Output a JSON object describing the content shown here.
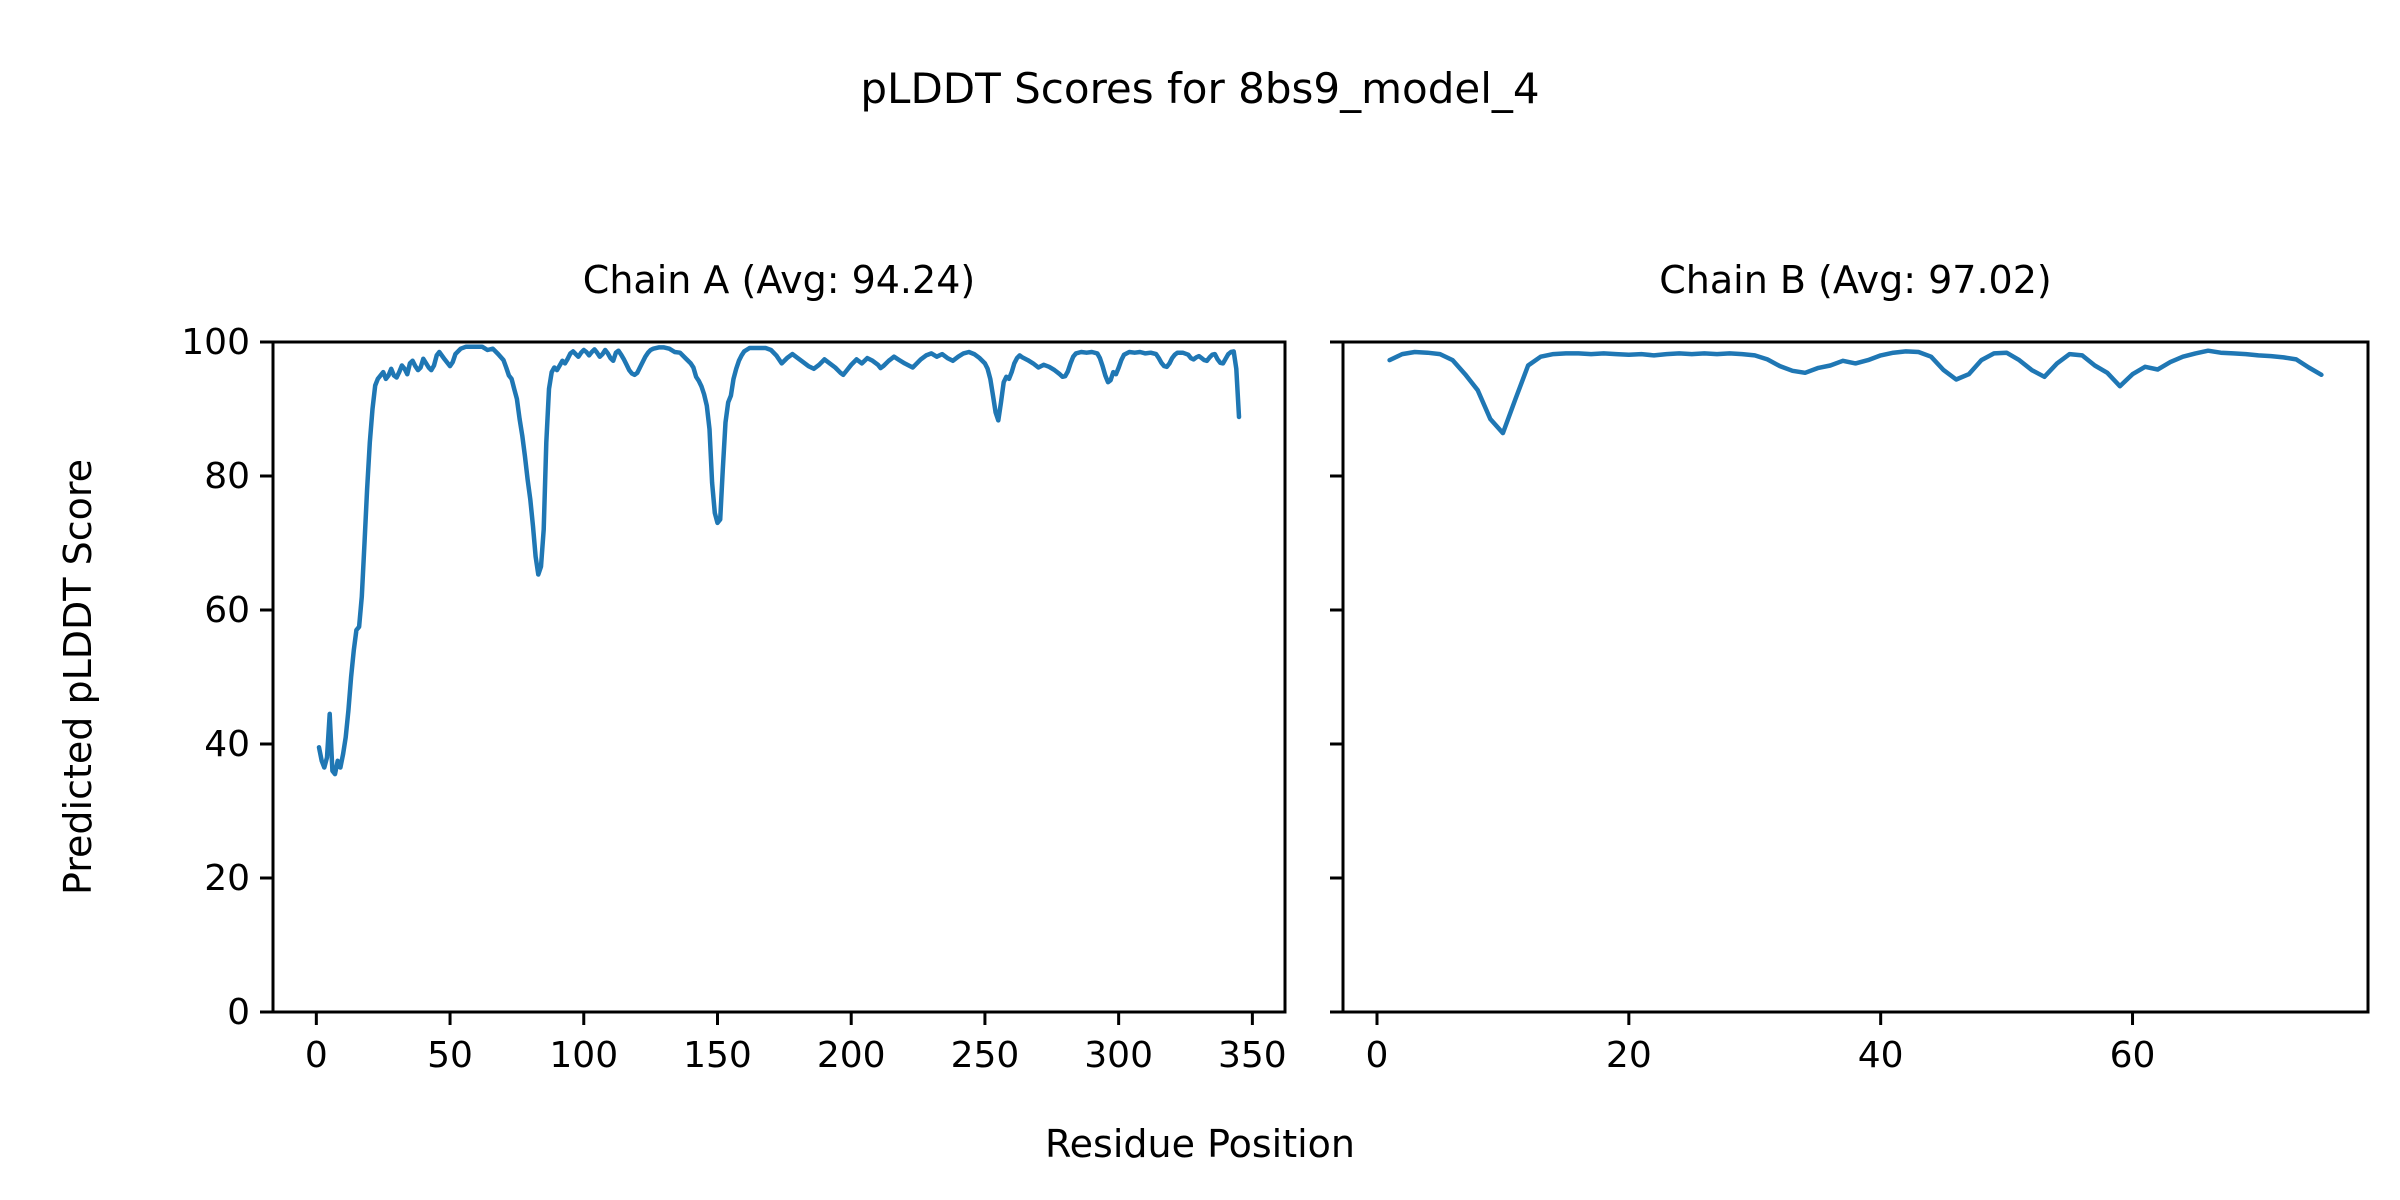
{
  "figure": {
    "title": "pLDDT Scores for 8bs9_model_4",
    "xlabel": "Residue Position",
    "ylabel": "Predicted pLDDT Score",
    "background": "#ffffff",
    "text_color": "#000000",
    "line_color": "#1f77b4"
  },
  "chart_data": [
    {
      "type": "line",
      "title": "Chain A (Avg: 94.24)",
      "chain": "A",
      "average_plddt": 94.24,
      "line_color": "#1f77b4",
      "x_ticks": [
        0,
        50,
        100,
        150,
        200,
        250,
        300,
        350
      ],
      "y_ticks": [
        0,
        20,
        40,
        60,
        80,
        100
      ],
      "show_y_tick_labels": true,
      "ylim": [
        0,
        100
      ],
      "grid": false,
      "points": [
        [
          1,
          39.5
        ],
        [
          2,
          37.5
        ],
        [
          3,
          36.5
        ],
        [
          4,
          38
        ],
        [
          5,
          44.5
        ],
        [
          6,
          36
        ],
        [
          7,
          35.5
        ],
        [
          8,
          37.5
        ],
        [
          9,
          36.5
        ],
        [
          10,
          38.5
        ],
        [
          11,
          41
        ],
        [
          12,
          45
        ],
        [
          13,
          50
        ],
        [
          14,
          54
        ],
        [
          15,
          57
        ],
        [
          16,
          57.5
        ],
        [
          17,
          62
        ],
        [
          18,
          70
        ],
        [
          19,
          78
        ],
        [
          20,
          85
        ],
        [
          21,
          90
        ],
        [
          22,
          93.5
        ],
        [
          23,
          94.5
        ],
        [
          24,
          95
        ],
        [
          25,
          95.5
        ],
        [
          26,
          94.5
        ],
        [
          27,
          95
        ],
        [
          28,
          96
        ],
        [
          29,
          95
        ],
        [
          30,
          94.7
        ],
        [
          31,
          95.5
        ],
        [
          32,
          96.5
        ],
        [
          33,
          96
        ],
        [
          34,
          95.2
        ],
        [
          35,
          96.8
        ],
        [
          36,
          97.2
        ],
        [
          37,
          96.4
        ],
        [
          38,
          95.8
        ],
        [
          39,
          96.2
        ],
        [
          40,
          97.5
        ],
        [
          42,
          96.2
        ],
        [
          43,
          95.8
        ],
        [
          44,
          96.5
        ],
        [
          45,
          98
        ],
        [
          46,
          98.5
        ],
        [
          48,
          97.4
        ],
        [
          50,
          96.4
        ],
        [
          51,
          97
        ],
        [
          52,
          98.2
        ],
        [
          54,
          99
        ],
        [
          56,
          99.3
        ],
        [
          58,
          99.3
        ],
        [
          60,
          99.3
        ],
        [
          62,
          99.3
        ],
        [
          64,
          98.8
        ],
        [
          66,
          99
        ],
        [
          68,
          98.2
        ],
        [
          70,
          97.3
        ],
        [
          71,
          96.2
        ],
        [
          72,
          95
        ],
        [
          73,
          94.5
        ],
        [
          74,
          93
        ],
        [
          75,
          91.5
        ],
        [
          76,
          88.5
        ],
        [
          77,
          86
        ],
        [
          78,
          83
        ],
        [
          79,
          79.5
        ],
        [
          80,
          76.5
        ],
        [
          81,
          72.5
        ],
        [
          82,
          68
        ],
        [
          83,
          65.3
        ],
        [
          84,
          66.5
        ],
        [
          85,
          72
        ],
        [
          86,
          85
        ],
        [
          87,
          93
        ],
        [
          88,
          95.5
        ],
        [
          89,
          96.2
        ],
        [
          90,
          95.8
        ],
        [
          91,
          96.5
        ],
        [
          92,
          97.2
        ],
        [
          93,
          96.8
        ],
        [
          94,
          97.5
        ],
        [
          95,
          98.3
        ],
        [
          96,
          98.6
        ],
        [
          97,
          98.2
        ],
        [
          98,
          97.8
        ],
        [
          99,
          98.4
        ],
        [
          100,
          98.8
        ],
        [
          101,
          98.5
        ],
        [
          102,
          98
        ],
        [
          103,
          98.5
        ],
        [
          104,
          98.9
        ],
        [
          105,
          98.4
        ],
        [
          106,
          97.8
        ],
        [
          107,
          98.2
        ],
        [
          108,
          98.8
        ],
        [
          109,
          98.3
        ],
        [
          110,
          97.6
        ],
        [
          111,
          97.2
        ],
        [
          112,
          98.4
        ],
        [
          113,
          98.7
        ],
        [
          114,
          98.1
        ],
        [
          115,
          97.4
        ],
        [
          116,
          96.6
        ],
        [
          117,
          95.8
        ],
        [
          118,
          95.3
        ],
        [
          119,
          95.1
        ],
        [
          120,
          95.4
        ],
        [
          121,
          96.2
        ],
        [
          122,
          97
        ],
        [
          123,
          97.8
        ],
        [
          124,
          98.4
        ],
        [
          125,
          98.8
        ],
        [
          126,
          99
        ],
        [
          128,
          99.2
        ],
        [
          130,
          99.2
        ],
        [
          132,
          99
        ],
        [
          134,
          98.5
        ],
        [
          136,
          98.4
        ],
        [
          138,
          97.6
        ],
        [
          140,
          96.8
        ],
        [
          141,
          96.2
        ],
        [
          142,
          94.8
        ],
        [
          143,
          94.2
        ],
        [
          144,
          93.4
        ],
        [
          145,
          92.2
        ],
        [
          146,
          90.5
        ],
        [
          147,
          87
        ],
        [
          148,
          79
        ],
        [
          149,
          74.5
        ],
        [
          150,
          73
        ],
        [
          151,
          73.5
        ],
        [
          152,
          81
        ],
        [
          153,
          88
        ],
        [
          154,
          91
        ],
        [
          155,
          92
        ],
        [
          156,
          94.5
        ],
        [
          157,
          96
        ],
        [
          158,
          97.2
        ],
        [
          159,
          98
        ],
        [
          160,
          98.6
        ],
        [
          162,
          99.1
        ],
        [
          164,
          99.1
        ],
        [
          166,
          99.1
        ],
        [
          168,
          99.1
        ],
        [
          170,
          98.8
        ],
        [
          172,
          98
        ],
        [
          173,
          97.4
        ],
        [
          174,
          96.8
        ],
        [
          176,
          97.6
        ],
        [
          178,
          98.2
        ],
        [
          180,
          97.6
        ],
        [
          182,
          97
        ],
        [
          184,
          96.4
        ],
        [
          186,
          96
        ],
        [
          188,
          96.6
        ],
        [
          190,
          97.4
        ],
        [
          192,
          96.8
        ],
        [
          194,
          96.2
        ],
        [
          196,
          95.4
        ],
        [
          197,
          95.1
        ],
        [
          198,
          95.6
        ],
        [
          200,
          96.6
        ],
        [
          202,
          97.4
        ],
        [
          204,
          96.8
        ],
        [
          206,
          97.6
        ],
        [
          208,
          97.2
        ],
        [
          210,
          96.6
        ],
        [
          211,
          96.1
        ],
        [
          212,
          96.4
        ],
        [
          214,
          97.2
        ],
        [
          216,
          97.8
        ],
        [
          218,
          97.3
        ],
        [
          220,
          96.8
        ],
        [
          222,
          96.4
        ],
        [
          223,
          96.2
        ],
        [
          224,
          96.6
        ],
        [
          226,
          97.4
        ],
        [
          228,
          98
        ],
        [
          230,
          98.3
        ],
        [
          232,
          97.8
        ],
        [
          234,
          98.2
        ],
        [
          236,
          97.6
        ],
        [
          238,
          97.2
        ],
        [
          240,
          97.8
        ],
        [
          242,
          98.3
        ],
        [
          244,
          98.5
        ],
        [
          246,
          98.2
        ],
        [
          248,
          97.6
        ],
        [
          250,
          96.8
        ],
        [
          251,
          96
        ],
        [
          252,
          94.5
        ],
        [
          253,
          92
        ],
        [
          254,
          89.5
        ],
        [
          255,
          88.3
        ],
        [
          256,
          91
        ],
        [
          257,
          94
        ],
        [
          258,
          94.8
        ],
        [
          259,
          94.5
        ],
        [
          260,
          95.5
        ],
        [
          261,
          96.8
        ],
        [
          262,
          97.6
        ],
        [
          263,
          98
        ],
        [
          264,
          97.7
        ],
        [
          266,
          97.3
        ],
        [
          268,
          96.8
        ],
        [
          270,
          96.2
        ],
        [
          272,
          96.6
        ],
        [
          274,
          96.3
        ],
        [
          276,
          95.8
        ],
        [
          278,
          95.2
        ],
        [
          279,
          94.8
        ],
        [
          280,
          94.9
        ],
        [
          281,
          95.6
        ],
        [
          282,
          96.8
        ],
        [
          283,
          97.8
        ],
        [
          284,
          98.3
        ],
        [
          286,
          98.5
        ],
        [
          288,
          98.4
        ],
        [
          290,
          98.5
        ],
        [
          292,
          98.3
        ],
        [
          293,
          97.6
        ],
        [
          294,
          96.4
        ],
        [
          295,
          95
        ],
        [
          296,
          94
        ],
        [
          297,
          94.3
        ],
        [
          298,
          95.5
        ],
        [
          299,
          95.2
        ],
        [
          300,
          96.2
        ],
        [
          301,
          97.3
        ],
        [
          302,
          98.1
        ],
        [
          304,
          98.5
        ],
        [
          306,
          98.4
        ],
        [
          308,
          98.5
        ],
        [
          310,
          98.3
        ],
        [
          312,
          98.4
        ],
        [
          314,
          98.2
        ],
        [
          315,
          97.6
        ],
        [
          316,
          96.9
        ],
        [
          317,
          96.4
        ],
        [
          318,
          96.3
        ],
        [
          319,
          96.8
        ],
        [
          320,
          97.6
        ],
        [
          321,
          98.1
        ],
        [
          322,
          98.4
        ],
        [
          324,
          98.4
        ],
        [
          326,
          98.1
        ],
        [
          327,
          97.6
        ],
        [
          328,
          97.4
        ],
        [
          329,
          97.7
        ],
        [
          330,
          97.9
        ],
        [
          331,
          97.6
        ],
        [
          332,
          97.3
        ],
        [
          333,
          97.2
        ],
        [
          334,
          97.7
        ],
        [
          335,
          98.1
        ],
        [
          336,
          98.2
        ],
        [
          337,
          97.4
        ],
        [
          338,
          96.9
        ],
        [
          339,
          96.8
        ],
        [
          340,
          97.5
        ],
        [
          341,
          98.2
        ],
        [
          342,
          98.5
        ],
        [
          343,
          98.6
        ],
        [
          344,
          96
        ],
        [
          345,
          88.8
        ]
      ]
    },
    {
      "type": "line",
      "title": "Chain B (Avg: 97.02)",
      "chain": "B",
      "average_plddt": 97.02,
      "line_color": "#1f77b4",
      "x_ticks": [
        0,
        20,
        40,
        60
      ],
      "y_ticks": [
        0,
        20,
        40,
        60,
        80,
        100
      ],
      "show_y_tick_labels": false,
      "ylim": [
        0,
        100
      ],
      "grid": false,
      "points": [
        [
          1,
          97.3
        ],
        [
          2,
          98.2
        ],
        [
          3,
          98.5
        ],
        [
          4,
          98.4
        ],
        [
          5,
          98.2
        ],
        [
          6,
          97.3
        ],
        [
          7,
          95.2
        ],
        [
          8,
          92.8
        ],
        [
          9,
          88.5
        ],
        [
          10,
          86.4
        ],
        [
          11,
          91.5
        ],
        [
          12,
          96.5
        ],
        [
          13,
          97.8
        ],
        [
          14,
          98.2
        ],
        [
          15,
          98.3
        ],
        [
          16,
          98.3
        ],
        [
          17,
          98.2
        ],
        [
          18,
          98.3
        ],
        [
          19,
          98.2
        ],
        [
          20,
          98.1
        ],
        [
          21,
          98.2
        ],
        [
          22,
          98
        ],
        [
          23,
          98.2
        ],
        [
          24,
          98.3
        ],
        [
          25,
          98.2
        ],
        [
          26,
          98.3
        ],
        [
          27,
          98.2
        ],
        [
          28,
          98.3
        ],
        [
          29,
          98.2
        ],
        [
          30,
          98
        ],
        [
          31,
          97.4
        ],
        [
          32,
          96.4
        ],
        [
          33,
          95.7
        ],
        [
          34,
          95.4
        ],
        [
          35,
          96.1
        ],
        [
          36,
          96.5
        ],
        [
          37,
          97.2
        ],
        [
          38,
          96.8
        ],
        [
          39,
          97.3
        ],
        [
          40,
          98
        ],
        [
          41,
          98.4
        ],
        [
          42,
          98.6
        ],
        [
          43,
          98.5
        ],
        [
          44,
          97.8
        ],
        [
          45,
          95.8
        ],
        [
          46,
          94.4
        ],
        [
          47,
          95.2
        ],
        [
          48,
          97.3
        ],
        [
          49,
          98.3
        ],
        [
          50,
          98.4
        ],
        [
          51,
          97.3
        ],
        [
          52,
          95.8
        ],
        [
          53,
          94.8
        ],
        [
          54,
          96.8
        ],
        [
          55,
          98.2
        ],
        [
          56,
          98
        ],
        [
          57,
          96.5
        ],
        [
          58,
          95.4
        ],
        [
          59,
          93.4
        ],
        [
          60,
          95.2
        ],
        [
          61,
          96.3
        ],
        [
          62,
          95.9
        ],
        [
          63,
          97
        ],
        [
          64,
          97.8
        ],
        [
          65,
          98.3
        ],
        [
          66,
          98.7
        ],
        [
          67,
          98.4
        ],
        [
          68,
          98.3
        ],
        [
          69,
          98.2
        ],
        [
          70,
          98
        ],
        [
          71,
          97.9
        ],
        [
          72,
          97.7
        ],
        [
          73,
          97.4
        ],
        [
          74,
          96.2
        ],
        [
          75,
          95.1
        ]
      ]
    }
  ]
}
